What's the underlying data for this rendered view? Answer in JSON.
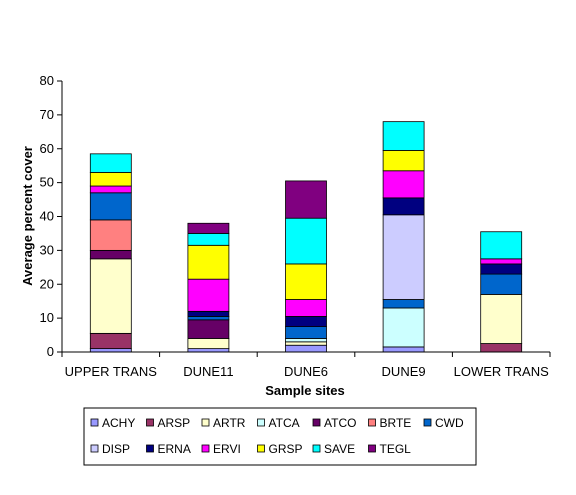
{
  "chart_data": {
    "type": "bar",
    "stacked": true,
    "title": "",
    "xlabel": "Sample sites",
    "ylabel": "Average percent cover",
    "ylim": [
      0,
      80
    ],
    "yticks": [
      0,
      10,
      20,
      30,
      40,
      50,
      60,
      70,
      80
    ],
    "grid": false,
    "legend_position": "bottom",
    "categories": [
      "UPPER TRANS",
      "DUNE11",
      "DUNE6",
      "DUNE9",
      "LOWER TRANS"
    ],
    "series": [
      {
        "name": "ACHY",
        "color": "#9999FF",
        "values": [
          1.0,
          1.0,
          2.0,
          1.5,
          0
        ]
      },
      {
        "name": "ARSP",
        "color": "#993366",
        "values": [
          4.5,
          0,
          0,
          0,
          2.5
        ]
      },
      {
        "name": "ARTR",
        "color": "#FFFFCC",
        "values": [
          22.0,
          3.0,
          1.0,
          0,
          14.5
        ]
      },
      {
        "name": "ATCA",
        "color": "#CCFFFF",
        "values": [
          0,
          0,
          1.0,
          11.5,
          0
        ]
      },
      {
        "name": "ATCO",
        "color": "#660066",
        "values": [
          2.5,
          5.5,
          0,
          0,
          0
        ]
      },
      {
        "name": "BRTE",
        "color": "#FF8080",
        "values": [
          9.0,
          0,
          0,
          0,
          0
        ]
      },
      {
        "name": "CWD",
        "color": "#0066CC",
        "values": [
          8.0,
          1.0,
          3.5,
          2.5,
          6.0
        ]
      },
      {
        "name": "DISP",
        "color": "#CCCCFF",
        "values": [
          0,
          0,
          0,
          25.0,
          0
        ]
      },
      {
        "name": "ERNA",
        "color": "#000080",
        "values": [
          0,
          1.5,
          3.0,
          5.0,
          3.0
        ]
      },
      {
        "name": "ERVI",
        "color": "#FF00FF",
        "values": [
          2.0,
          9.5,
          5.0,
          8.0,
          1.5
        ]
      },
      {
        "name": "GRSP",
        "color": "#FFFF00",
        "values": [
          4.0,
          10.0,
          10.5,
          6.0,
          0
        ]
      },
      {
        "name": "SAVE",
        "color": "#00FFFF",
        "values": [
          5.5,
          3.5,
          13.5,
          8.5,
          8.0
        ]
      },
      {
        "name": "TEGL",
        "color": "#800080",
        "values": [
          0,
          3.0,
          11.0,
          0,
          0
        ]
      }
    ]
  }
}
